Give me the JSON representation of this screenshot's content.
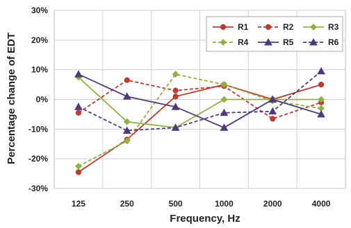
{
  "chart_data": {
    "type": "line",
    "title": "",
    "xlabel": "Frequency, Hz",
    "ylabel": "Percentage change of EDT",
    "categories": [
      "125",
      "250",
      "500",
      "1000",
      "2000",
      "4000"
    ],
    "y_ticks": [
      "-30%",
      "-20%",
      "-10%",
      "0%",
      "10%",
      "20%",
      "30%"
    ],
    "ylim": [
      -30,
      30
    ],
    "grid": true,
    "legend": "top-right",
    "series": [
      {
        "name": "R1",
        "color": "#c0392b",
        "dashed": false,
        "marker": "circle",
        "values": [
          -24.5,
          -13.5,
          1,
          5,
          0,
          5
        ]
      },
      {
        "name": "R2",
        "color": "#c0392b",
        "dashed": true,
        "marker": "circle",
        "values": [
          -4.5,
          6.5,
          3,
          4.5,
          -6.5,
          -1
        ]
      },
      {
        "name": "R3",
        "color": "#8db43e",
        "dashed": false,
        "marker": "diamond",
        "values": [
          7.5,
          -7.5,
          -9.5,
          0,
          0,
          0
        ]
      },
      {
        "name": "R4",
        "color": "#8db43e",
        "dashed": true,
        "marker": "diamond",
        "values": [
          -22.5,
          -14,
          8.5,
          5,
          -0.5,
          -3
        ]
      },
      {
        "name": "R5",
        "color": "#4f3a7d",
        "dashed": false,
        "marker": "triangle",
        "values": [
          8.5,
          1,
          -2.5,
          -9.5,
          0,
          -5
        ]
      },
      {
        "name": "R6",
        "color": "#4f3a7d",
        "dashed": true,
        "marker": "triangle",
        "values": [
          -2.5,
          -10.5,
          -9.5,
          -4.5,
          -4,
          9.5
        ]
      }
    ]
  }
}
